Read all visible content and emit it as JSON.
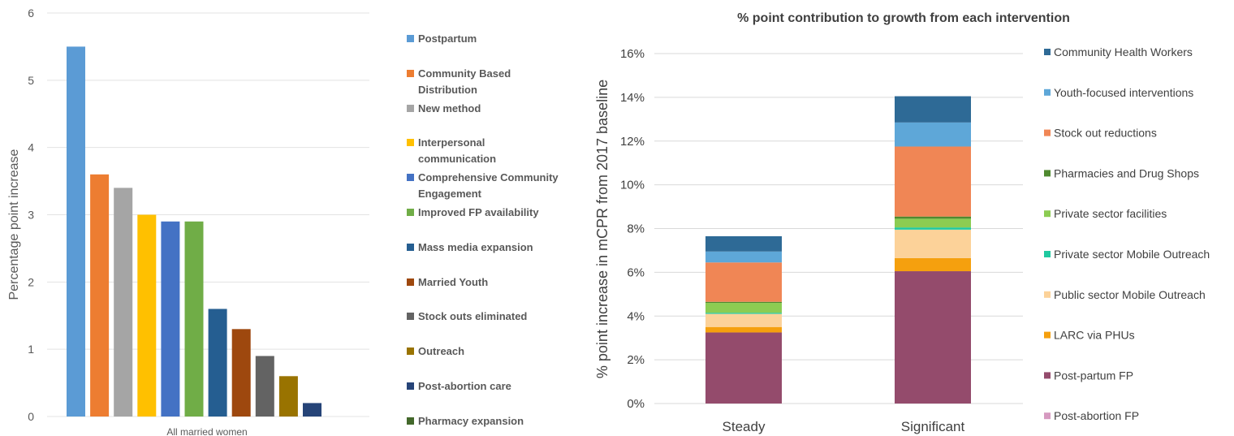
{
  "chart_data": [
    {
      "type": "bar",
      "title": "",
      "ylabel": "Percentage point increase",
      "ylim": [
        0,
        6
      ],
      "yticks": [
        0,
        1,
        2,
        3,
        4,
        5,
        6
      ],
      "grid": true,
      "legend_position": "right",
      "categories": [
        "All married women"
      ],
      "series": [
        {
          "name": "Postpartum",
          "values": [
            5.5
          ],
          "color": "#5b9bd5"
        },
        {
          "name": "Community Based Distribution",
          "values": [
            3.6
          ],
          "color": "#ed7d31"
        },
        {
          "name": "New method",
          "values": [
            3.4
          ],
          "color": "#a5a5a5"
        },
        {
          "name": "Interpersonal communication",
          "values": [
            3.0
          ],
          "color": "#ffc000"
        },
        {
          "name": "Comprehensive Community Engagement",
          "values": [
            2.9
          ],
          "color": "#4472c4"
        },
        {
          "name": "Improved FP availability",
          "values": [
            2.9
          ],
          "color": "#70ad47"
        },
        {
          "name": "Mass media expansion",
          "values": [
            1.6
          ],
          "color": "#255e91"
        },
        {
          "name": "Married Youth",
          "values": [
            1.3
          ],
          "color": "#9e480e"
        },
        {
          "name": "Stock outs eliminated",
          "values": [
            0.9
          ],
          "color": "#636363"
        },
        {
          "name": "Outreach",
          "values": [
            0.6
          ],
          "color": "#997300"
        },
        {
          "name": "Post-abortion care",
          "values": [
            0.2
          ],
          "color": "#264478"
        },
        {
          "name": "Pharmacy expansion",
          "values": [
            0.0
          ],
          "color": "#43682b"
        }
      ]
    },
    {
      "type": "bar",
      "stacked": true,
      "title": "% point contribution to growth from each intervention",
      "ylabel": "% point increase in mCPR from 2017 baseline",
      "ylim": [
        0,
        16
      ],
      "yticks": [
        "0%",
        "2%",
        "4%",
        "6%",
        "8%",
        "10%",
        "12%",
        "14%",
        "16%"
      ],
      "grid": true,
      "legend_position": "right",
      "categories": [
        "Steady",
        "Significant"
      ],
      "series": [
        {
          "name": "Community Health Workers",
          "values": [
            0.7,
            1.2
          ],
          "color": "#2e6a96"
        },
        {
          "name": "Youth-focused interventions",
          "values": [
            0.5,
            1.1
          ],
          "color": "#5ea7d8"
        },
        {
          "name": "Stock out reductions",
          "values": [
            1.8,
            3.2
          ],
          "color": "#f08655"
        },
        {
          "name": "Pharmacies and Drug Shops",
          "values": [
            0.05,
            0.1
          ],
          "color": "#4f8a2f"
        },
        {
          "name": "Private sector facilities",
          "values": [
            0.45,
            0.4
          ],
          "color": "#8ccc52"
        },
        {
          "name": "Private sector Mobile Outreach",
          "values": [
            0.05,
            0.1
          ],
          "color": "#1fc9a0"
        },
        {
          "name": "Public sector Mobile Outreach",
          "values": [
            0.6,
            1.3
          ],
          "color": "#fcd299"
        },
        {
          "name": "LARC via PHUs",
          "values": [
            0.25,
            0.6
          ],
          "color": "#f5a00e"
        },
        {
          "name": "Post-partum FP",
          "values": [
            3.25,
            6.05
          ],
          "color": "#944b6c"
        },
        {
          "name": "Post-abortion FP",
          "values": [
            0.0,
            0.0
          ],
          "color": "#d69ac0"
        }
      ]
    }
  ]
}
